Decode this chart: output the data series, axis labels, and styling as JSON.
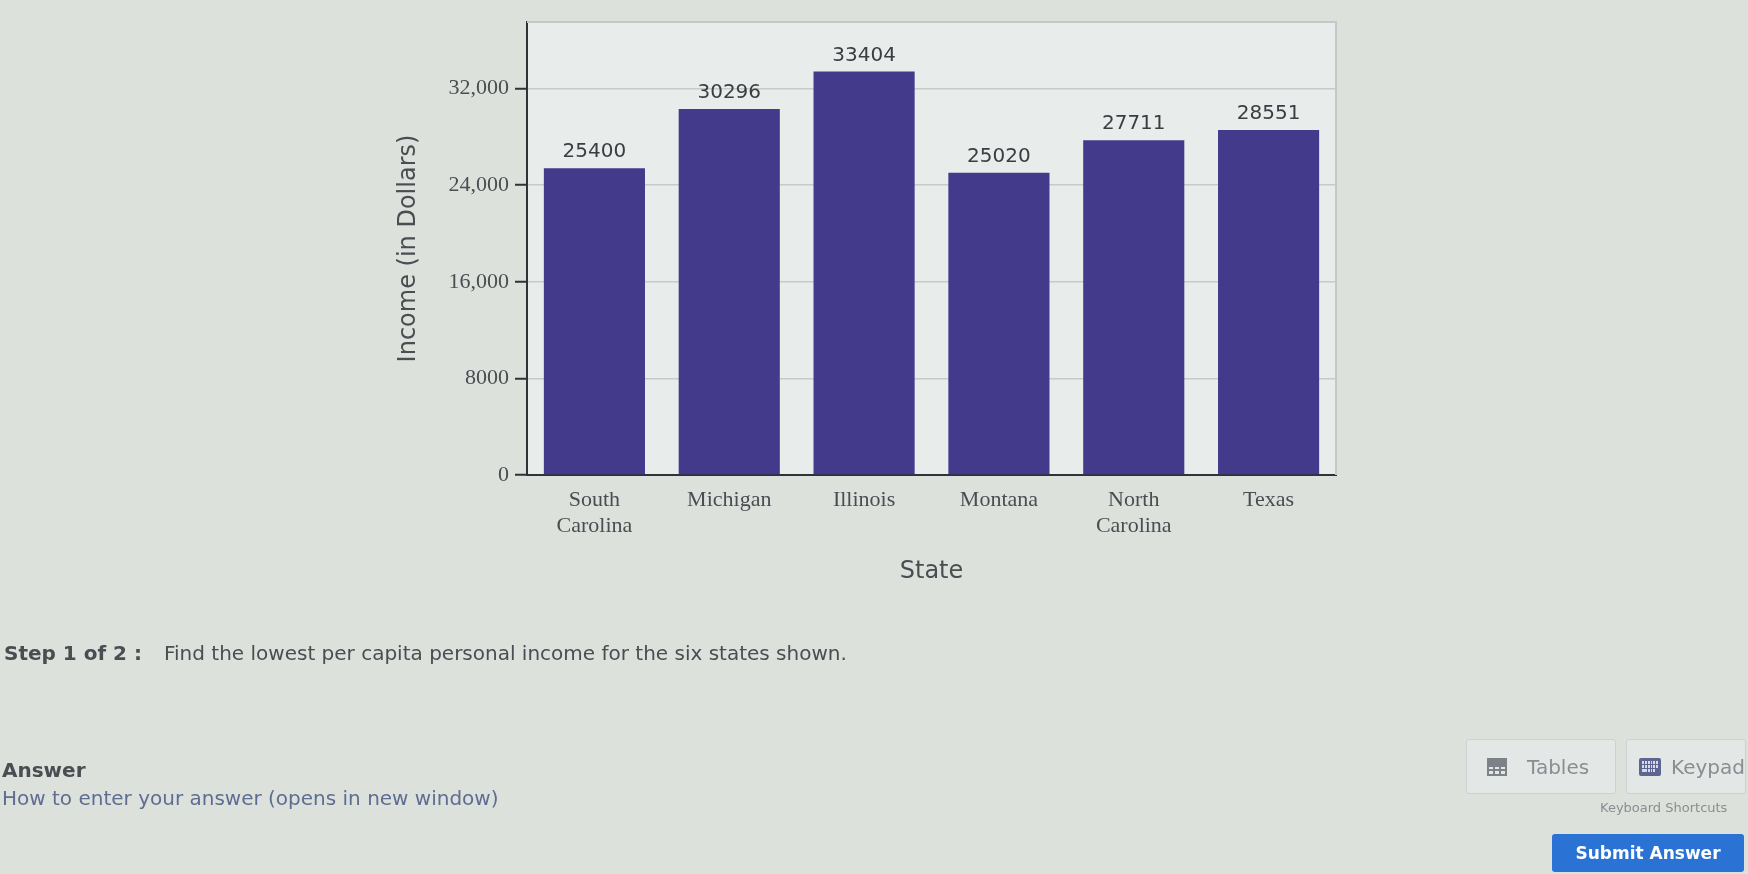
{
  "chart_data": {
    "type": "bar",
    "xlabel": "State",
    "ylabel": "Income (in Dollars)",
    "categories": [
      "South Carolina",
      "Michigan",
      "Illinois",
      "Montana",
      "North Carolina",
      "Texas"
    ],
    "values": [
      25400,
      30296,
      33404,
      25020,
      27711,
      28551
    ],
    "color": "#433a8c",
    "ylim": [
      0,
      37500
    ],
    "yticks": [
      0,
      8000,
      {
        "value": 16000,
        "label": "16,000"
      },
      {
        "value": 24000,
        "label": "24,000"
      },
      {
        "value": 32000,
        "label": "32,000"
      }
    ],
    "grid": "y",
    "data_labels": true,
    "annotations": [
      "Step 1 of 2 :",
      "Find the lowest per capita personal income for the six states shown.",
      "Answer",
      "How to enter your answer (opens in new window)",
      "Tables",
      "Keypad",
      "Keyboard Shortcuts",
      "Submit Answer"
    ]
  }
}
